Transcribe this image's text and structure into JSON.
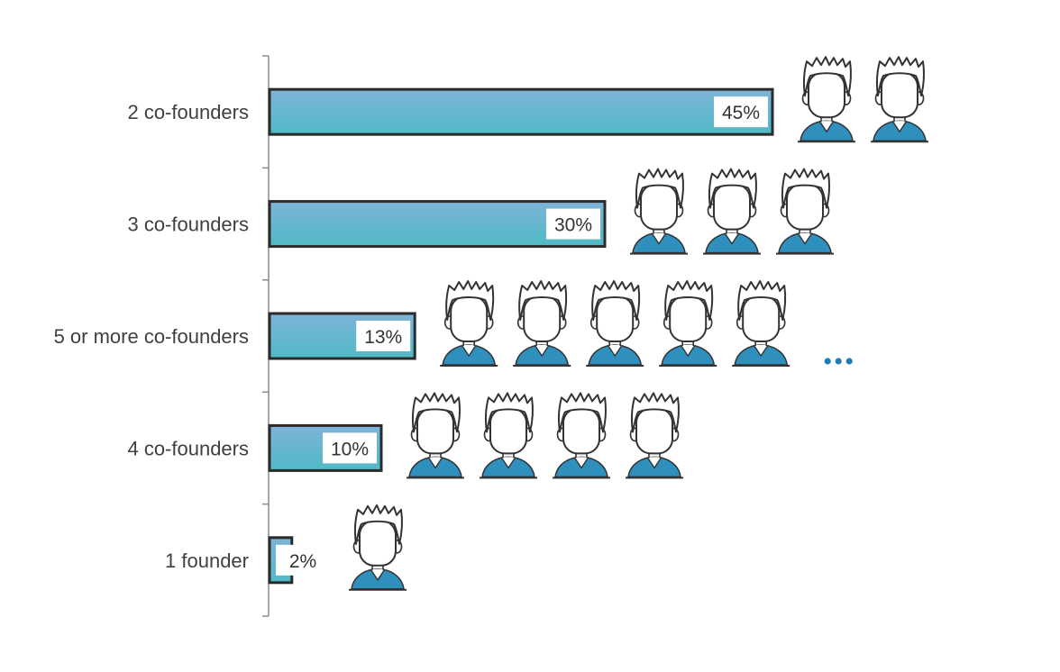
{
  "chart_data": {
    "type": "bar",
    "orientation": "horizontal",
    "categories": [
      "2 co-founders",
      "3 co-founders",
      "5 or more co-founders",
      "4 co-founders",
      "1 founder"
    ],
    "values": [
      45,
      30,
      13,
      10,
      2
    ],
    "value_labels": [
      "45%",
      "30%",
      "13%",
      "10%",
      "2%"
    ],
    "icon_counts": [
      2,
      3,
      5,
      4,
      1
    ],
    "icon": "person-icon",
    "more_indicator": {
      "category": "5 or more co-founders",
      "symbol": "..."
    },
    "xlim": [
      0,
      45
    ],
    "grid": false,
    "legend": "none"
  },
  "colors": {
    "bar_top": "#7fb3d8",
    "bar_bottom": "#4fbac6",
    "bar_border": "#2b2b2b",
    "axis": "#8a8a8a",
    "person_shirt": "#2f8fbd",
    "person_outline": "#333333",
    "ellipsis": "#1f7fb5"
  }
}
